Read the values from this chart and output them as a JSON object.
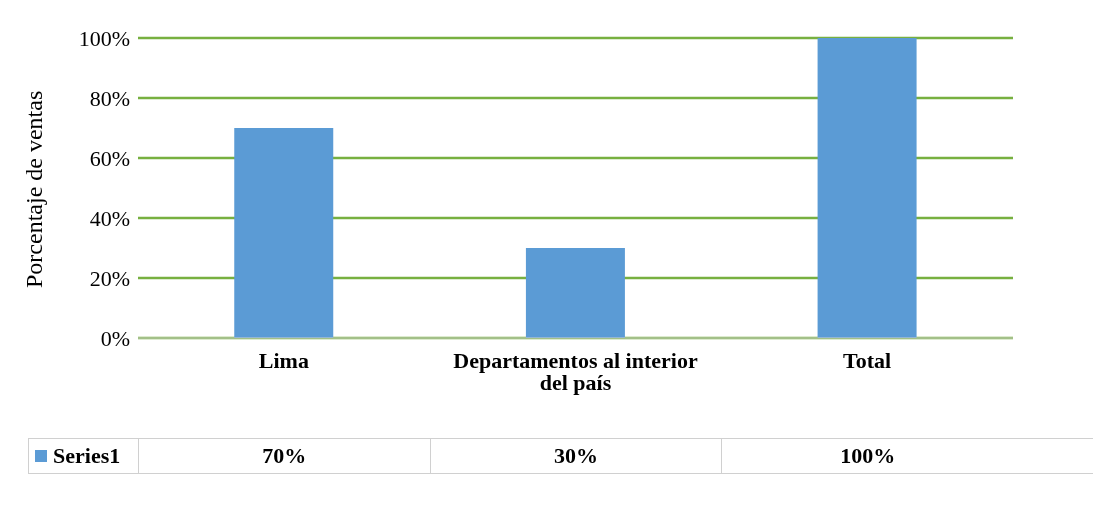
{
  "chart_data": {
    "type": "bar",
    "ylabel": "Porcentaje de ventas",
    "categories": [
      "Lima",
      "Departamentos al interior del país",
      "Total"
    ],
    "series": [
      {
        "name": "Series1",
        "color": "#5b9bd5",
        "values": [
          70,
          30,
          100
        ],
        "value_labels": [
          "70%",
          "30%",
          "100%"
        ]
      }
    ],
    "ylim": [
      0,
      100
    ],
    "yticks": [
      {
        "value": 0,
        "label": "0%"
      },
      {
        "value": 20,
        "label": "20%"
      },
      {
        "value": 40,
        "label": "40%"
      },
      {
        "value": 60,
        "label": "60%"
      },
      {
        "value": 80,
        "label": "80%"
      },
      {
        "value": 100,
        "label": "100%"
      }
    ],
    "grid": "y",
    "legend": "bottom"
  }
}
